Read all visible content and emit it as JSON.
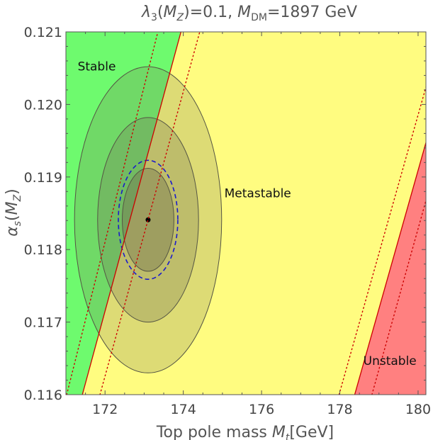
{
  "chart_data": {
    "type": "contour",
    "title": {
      "lambda_sym": "λ",
      "lambda_sub": "3",
      "lambda_arg_open": "(",
      "lambda_arg": "M",
      "lambda_arg_sub": "Z",
      "lambda_rest": ")=0.1, ",
      "mdm_sym": "M",
      "mdm_sub": "DM",
      "mdm_rest": "=1897 GeV"
    },
    "xlabel": {
      "text": "Top pole mass ",
      "sym": "M",
      "sub": "t",
      "unit": "[GeV]"
    },
    "ylabel": {
      "sym": "α",
      "sub": "s",
      "open": "(",
      "arg": "M",
      "arg_sub": "Z",
      "close": ")"
    },
    "xlim": [
      171,
      180.2
    ],
    "ylim": [
      0.116,
      0.121
    ],
    "xticks": [
      172,
      174,
      176,
      178,
      180
    ],
    "xtick_labels": [
      "172",
      "174",
      "176",
      "178",
      "180"
    ],
    "yticks": [
      0.116,
      0.117,
      0.118,
      0.119,
      0.12,
      0.121
    ],
    "ytick_labels": [
      "0.116",
      "0.117",
      "0.118",
      "0.119",
      "0.120",
      "0.121"
    ],
    "regions": [
      {
        "name": "Stable",
        "color": "#6efa6e",
        "label_x": 171.3,
        "label_y": 0.12047
      },
      {
        "name": "Metastable",
        "color": "#fffc80",
        "label_x": 175.05,
        "label_y": 0.11872
      },
      {
        "name": "Unstable",
        "color": "#ff8080",
        "label_x": 178.6,
        "label_y": 0.11641
      }
    ],
    "boundaries": [
      {
        "name": "stable-metastable",
        "style": "solid",
        "color": "#cc0000",
        "points": [
          [
            171.42,
            0.116
          ],
          [
            173.94,
            0.121
          ]
        ]
      },
      {
        "name": "stable-metastable-upper",
        "style": "dotted",
        "color": "#cc0000",
        "points": [
          [
            171.02,
            0.116
          ],
          [
            173.35,
            0.121
          ]
        ]
      },
      {
        "name": "stable-metastable-lower",
        "style": "dotted",
        "color": "#cc0000",
        "points": [
          [
            171.87,
            0.116
          ],
          [
            174.42,
            0.121
          ]
        ]
      },
      {
        "name": "metastable-unstable",
        "style": "solid",
        "color": "#cc0000",
        "points": [
          [
            178.38,
            0.116
          ],
          [
            181.0,
            0.121
          ]
        ]
      },
      {
        "name": "metastable-unstable-lower",
        "style": "dotted",
        "color": "#cc0000",
        "points": [
          [
            177.98,
            0.116
          ],
          [
            180.6,
            0.121
          ]
        ]
      },
      {
        "name": "metastable-unstable-upper",
        "style": "dotted",
        "color": "#cc0000",
        "points": [
          [
            178.82,
            0.116
          ],
          [
            181.4,
            0.121
          ]
        ]
      }
    ],
    "central_value": {
      "x": 173.1,
      "y": 0.11841
    },
    "ellipses": [
      {
        "name": "3-sigma",
        "rx": 1.88,
        "ry": 0.00211,
        "fill": "#777755",
        "opacity": 0.25
      },
      {
        "name": "2-sigma",
        "rx": 1.29,
        "ry": 0.00141,
        "fill": "#777755",
        "opacity": 0.3
      },
      {
        "name": "1-sigma",
        "rx": 0.66,
        "ry": 0.00071,
        "fill": "#777755",
        "opacity": 0.45
      }
    ],
    "dashed_ellipse": {
      "rx": 0.76,
      "ry": 0.00082,
      "color": "#1a1acc"
    }
  }
}
